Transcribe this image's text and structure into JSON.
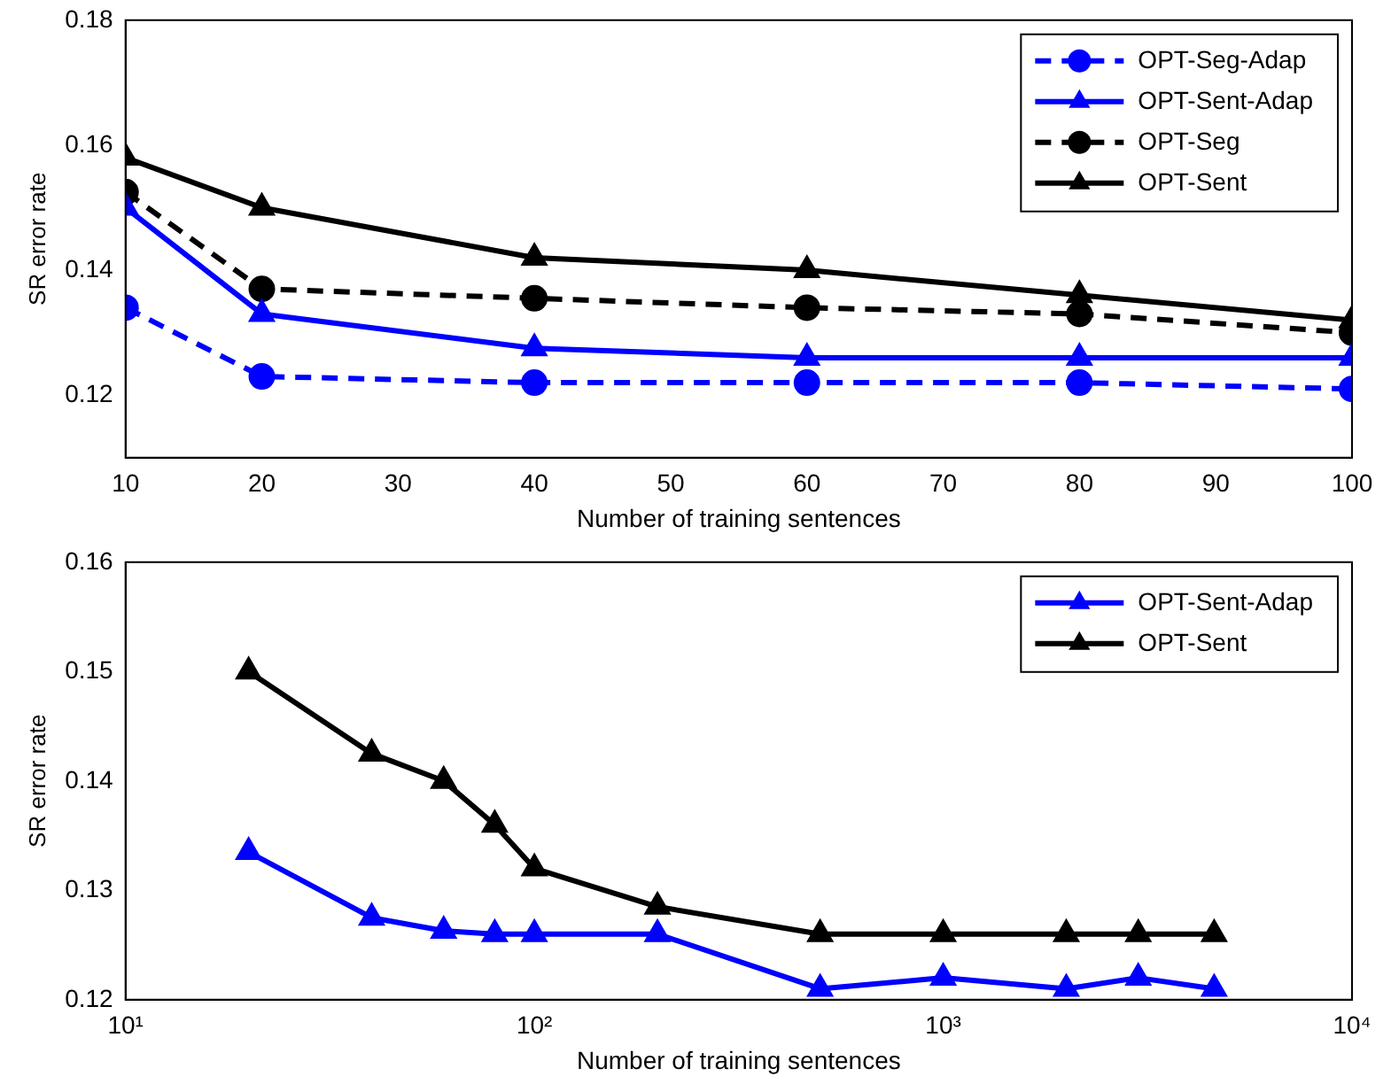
{
  "chart_data": [
    {
      "type": "line",
      "xlabel": "Number of training sentences",
      "ylabel": "SR error rate",
      "x": [
        10,
        20,
        40,
        60,
        80,
        100
      ],
      "xlim": [
        10,
        100
      ],
      "xticks": [
        10,
        20,
        30,
        40,
        50,
        60,
        70,
        80,
        90,
        100
      ],
      "ylim": [
        0.11,
        0.18
      ],
      "yticks": [
        0.12,
        0.14,
        0.16,
        0.18
      ],
      "grid": false,
      "legend": "top right",
      "series": [
        {
          "name": "OPT-Seg-Adap",
          "color": "#0000ff",
          "marker": "circle",
          "line_style": "dashed",
          "values": [
            0.134,
            0.123,
            0.122,
            0.122,
            0.122,
            0.121
          ]
        },
        {
          "name": "OPT-Sent-Adap",
          "color": "#0000ff",
          "marker": "triangle",
          "line_style": "solid",
          "values": [
            0.15,
            0.133,
            0.1275,
            0.126,
            0.126,
            0.126
          ]
        },
        {
          "name": "OPT-Seg",
          "color": "#000000",
          "marker": "circle",
          "line_style": "dashed",
          "values": [
            0.1525,
            0.137,
            0.1355,
            0.134,
            0.133,
            0.13
          ]
        },
        {
          "name": "OPT-Sent",
          "color": "#000000",
          "marker": "triangle",
          "line_style": "solid",
          "values": [
            0.158,
            0.15,
            0.142,
            0.14,
            0.136,
            0.132
          ]
        }
      ]
    },
    {
      "type": "line",
      "xlabel": "Number of training sentences",
      "ylabel": "SR error rate",
      "log": "x",
      "x": [
        20,
        40,
        60,
        80,
        100,
        200,
        500,
        1000,
        2000,
        3000,
        4600
      ],
      "xlim": [
        10,
        10000
      ],
      "xticks": [
        {
          "value": 10,
          "label": "10¹"
        },
        {
          "value": 100,
          "label": "10²"
        },
        {
          "value": 1000,
          "label": "10³"
        },
        {
          "value": 10000,
          "label": "10⁴"
        }
      ],
      "ylim": [
        0.12,
        0.16
      ],
      "yticks": [
        0.12,
        0.13,
        0.14,
        0.15,
        0.16
      ],
      "grid": false,
      "legend": "top right",
      "marker": "triangle",
      "line_style": "solid",
      "series": [
        {
          "name": "OPT-Sent-Adap",
          "color": "#0000ff",
          "values": [
            0.1335,
            0.1275,
            0.1263,
            0.126,
            0.126,
            0.126,
            0.121,
            0.122,
            0.121,
            0.122,
            0.121
          ]
        },
        {
          "name": "OPT-Sent",
          "color": "#000000",
          "values": [
            0.15,
            0.1425,
            0.14,
            0.136,
            0.132,
            0.1285,
            0.126,
            0.126,
            0.126,
            0.126,
            0.126
          ]
        }
      ]
    }
  ]
}
